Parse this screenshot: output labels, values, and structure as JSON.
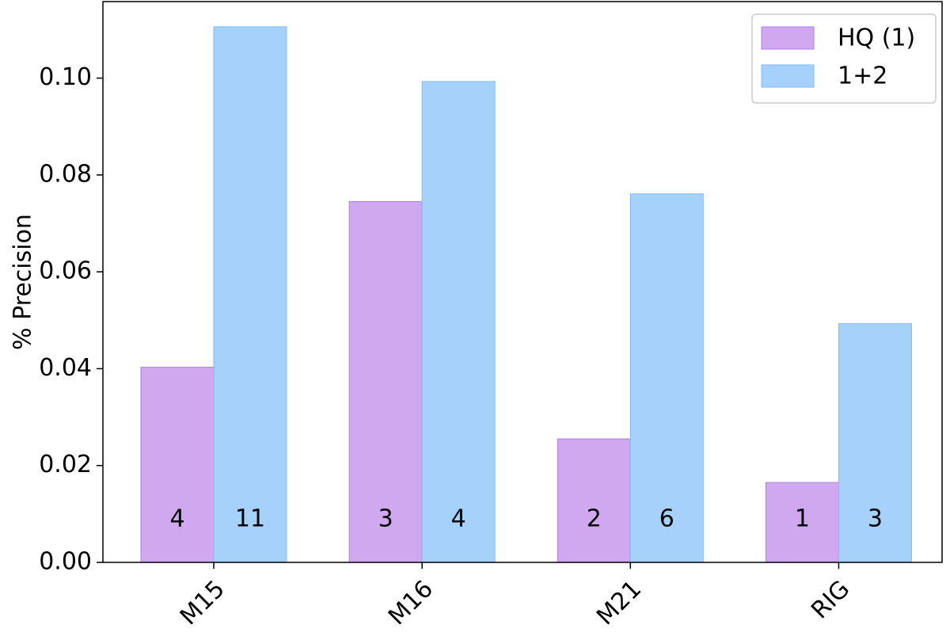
{
  "chart_data": {
    "type": "bar",
    "y_label": "% Precision",
    "categories": [
      "M15",
      "M16",
      "M21",
      "RIG"
    ],
    "series": [
      {
        "name": "HQ (1)",
        "color": "#d0a8f0",
        "values": [
          0.0403,
          0.0745,
          0.0255,
          0.0165
        ],
        "counts": [
          4,
          3,
          2,
          1
        ]
      },
      {
        "name": "1+2",
        "color": "#a6d1fb",
        "values": [
          0.1106,
          0.0993,
          0.0761,
          0.0493
        ],
        "counts": [
          11,
          4,
          6,
          3
        ]
      }
    ],
    "ylim": [
      0,
      0.1158
    ],
    "yticks": [
      {
        "value": 0,
        "label": "0.00"
      },
      {
        "value": 0.02,
        "label": "0.02"
      },
      {
        "value": 0.04,
        "label": "0.04"
      },
      {
        "value": 0.06,
        "label": "0.06"
      },
      {
        "value": 0.08,
        "label": "0.08"
      },
      {
        "value": 0.1,
        "label": "0.10"
      }
    ],
    "legend": "upper right"
  }
}
